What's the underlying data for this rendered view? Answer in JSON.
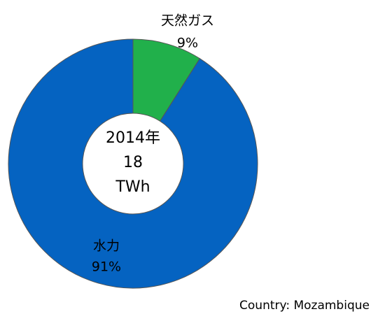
{
  "chart_data": {
    "type": "donut",
    "categories": [
      "天然ガス",
      "水力"
    ],
    "values": [
      9,
      91
    ],
    "value_labels": [
      "9%",
      "91%"
    ],
    "colors": [
      "#21b04b",
      "#0563c1"
    ],
    "center_text": [
      "2014年",
      "18",
      "TWh"
    ],
    "footnote": "Country: Mozambique"
  }
}
